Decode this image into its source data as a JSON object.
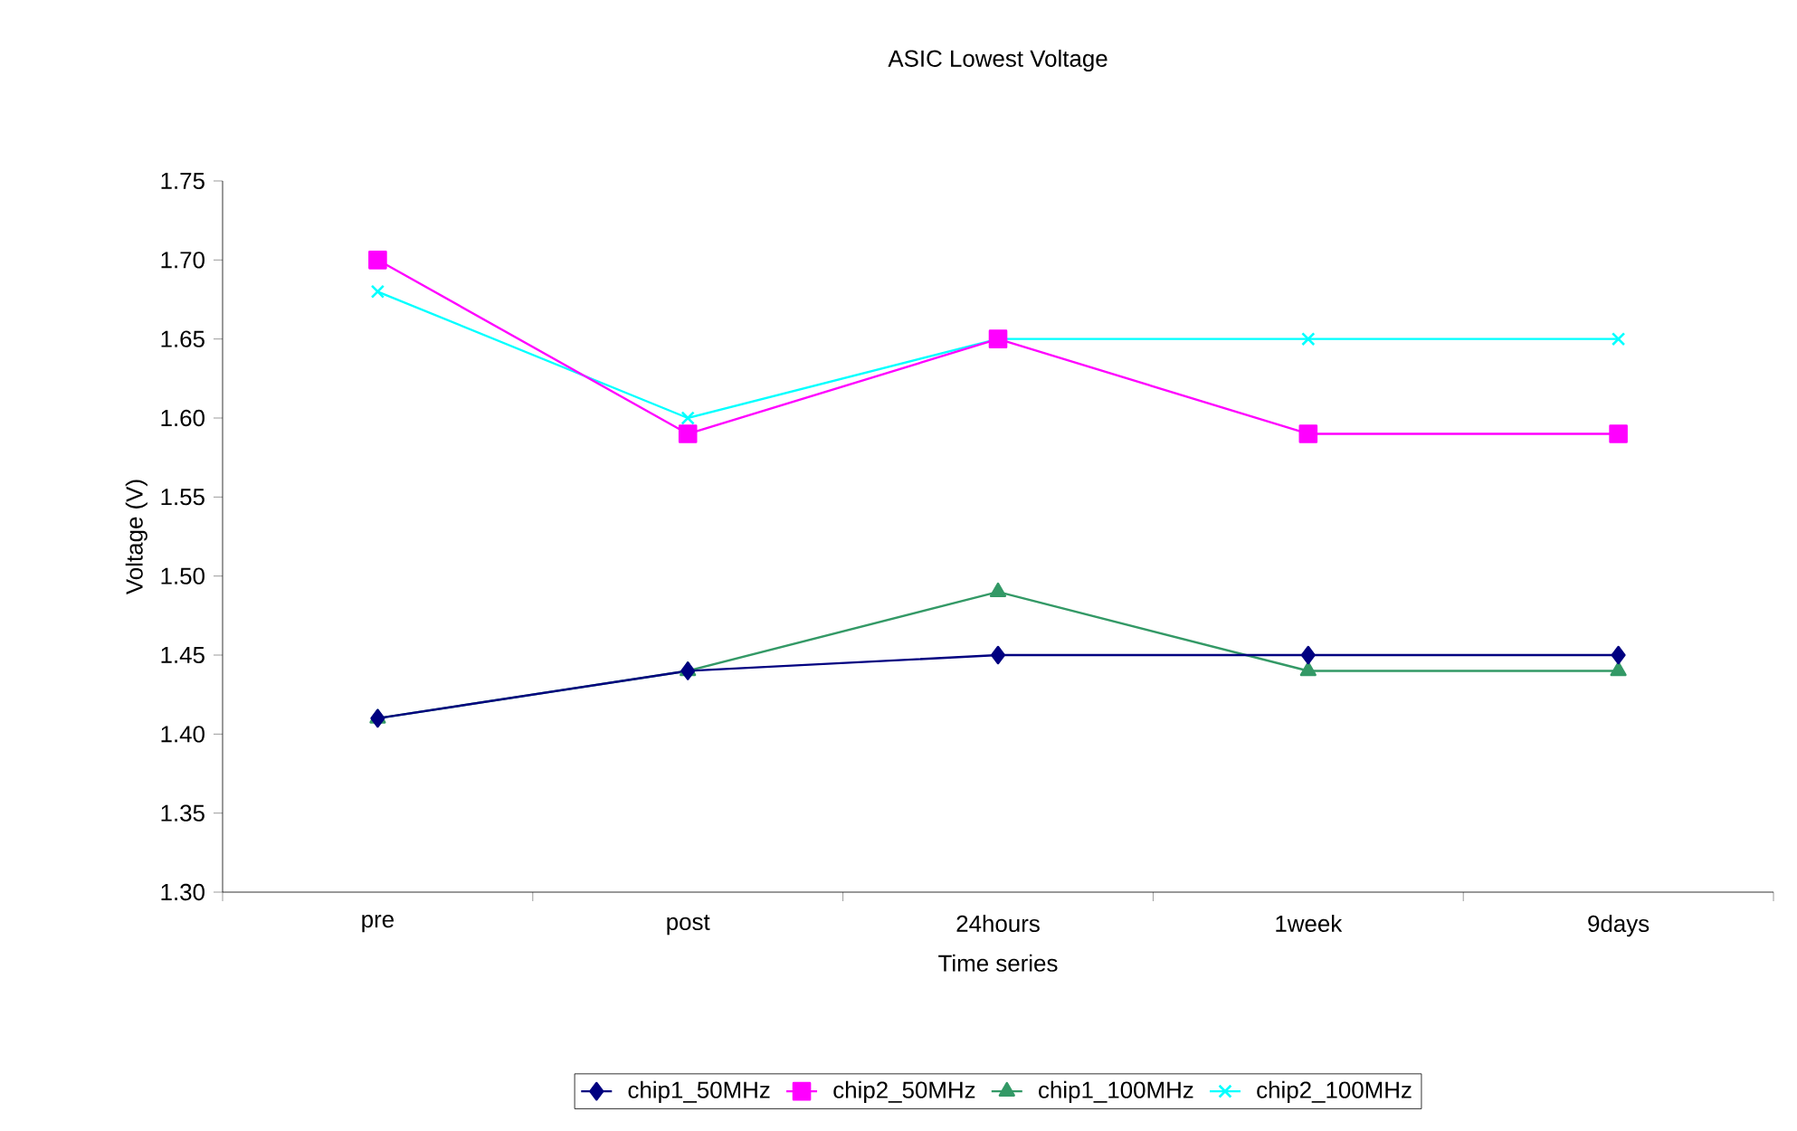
{
  "chart_data": {
    "type": "line",
    "title": "ASIC Lowest Voltage",
    "xlabel": "Time series",
    "ylabel": "Voltage (V)",
    "categories": [
      "pre",
      "post",
      "24hours",
      "1week",
      "9days"
    ],
    "ylim": [
      1.3,
      1.75
    ],
    "yticks": [
      {
        "value": 1.3,
        "label": "1.30"
      },
      {
        "value": 1.35,
        "label": "1.35"
      },
      {
        "value": 1.4,
        "label": "1.40"
      },
      {
        "value": 1.45,
        "label": "1.45"
      },
      {
        "value": 1.5,
        "label": "1.50"
      },
      {
        "value": 1.55,
        "label": "1.55"
      },
      {
        "value": 1.6,
        "label": "1.60"
      },
      {
        "value": 1.65,
        "label": "1.65"
      },
      {
        "value": 1.7,
        "label": "1.70"
      },
      {
        "value": 1.75,
        "label": "1.75"
      }
    ],
    "grid": false,
    "legend": "bottom",
    "line_style": "solid",
    "series": [
      {
        "name": "chip1_50MHz",
        "color": "#000080",
        "marker": "diamond",
        "values": [
          1.41,
          1.44,
          1.45,
          1.45,
          1.45
        ]
      },
      {
        "name": "chip2_50MHz",
        "color": "#ff00ff",
        "marker": "square",
        "values": [
          1.7,
          1.59,
          1.65,
          1.59,
          1.59
        ]
      },
      {
        "name": "chip1_100MHz",
        "color": "#339966",
        "marker": "triangle",
        "values": [
          1.41,
          1.44,
          1.49,
          1.44,
          1.44
        ]
      },
      {
        "name": "chip2_100MHz",
        "color": "#00ffff",
        "marker": "cross",
        "values": [
          1.68,
          1.6,
          1.65,
          1.65,
          1.65
        ]
      }
    ]
  }
}
